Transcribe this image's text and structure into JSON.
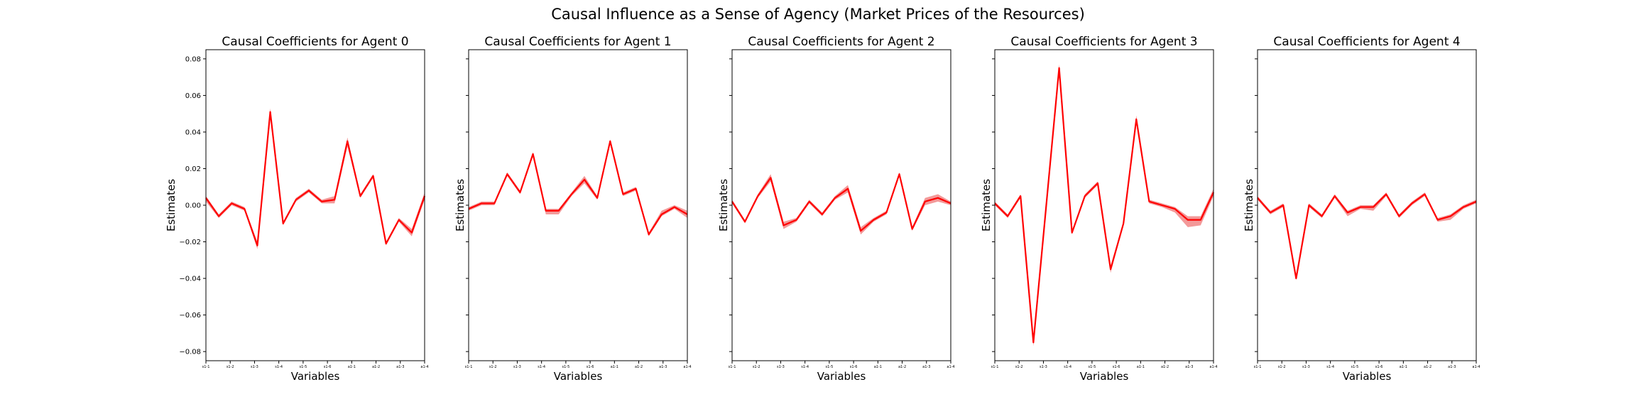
{
  "figure": {
    "suptitle": "Causal Influence as a Sense of Agency (Market Prices of the Resources)"
  },
  "colors": {
    "line": "#ff0000",
    "band": "#f08080",
    "axes": "#000000"
  },
  "chart_data": [
    {
      "type": "line",
      "title": "Causal Coefficients for Agent 0",
      "xlabel": "Variables",
      "ylabel": "Estimates",
      "ylim": [
        -0.085,
        0.085
      ],
      "yticks": [
        -0.08,
        -0.06,
        -0.04,
        -0.02,
        0.0,
        0.02,
        0.04,
        0.06,
        0.08
      ],
      "ytick_labels": [
        "−0.08",
        "−0.06",
        "−0.04",
        "−0.02",
        "0.00",
        "0.02",
        "0.04",
        "0.06",
        "0.08"
      ],
      "xtick_labels": [
        "s1-1",
        "s1-2",
        "s1-3",
        "s1-4",
        "s1-5",
        "s1-6",
        "a1-1",
        "a1-2",
        "a1-3",
        "a1-4"
      ],
      "series": [
        {
          "values": [
            0.004,
            -0.006,
            0.001,
            -0.002,
            -0.022,
            0.051,
            -0.01,
            0.003,
            0.008,
            0.002,
            0.003,
            0.035,
            0.005,
            0.016,
            -0.021,
            -0.008,
            -0.015,
            0.005
          ],
          "lower": [
            0.002,
            -0.007,
            0.0,
            -0.003,
            -0.024,
            0.048,
            -0.011,
            0.002,
            0.007,
            0.001,
            0.001,
            0.032,
            0.004,
            0.015,
            -0.022,
            -0.009,
            -0.017,
            0.003
          ],
          "upper": [
            0.005,
            -0.005,
            0.002,
            -0.001,
            -0.02,
            0.053,
            -0.009,
            0.004,
            0.009,
            0.003,
            0.005,
            0.037,
            0.006,
            0.017,
            -0.02,
            -0.007,
            -0.013,
            0.007
          ]
        }
      ]
    },
    {
      "type": "line",
      "title": "Causal Coefficients for Agent 1",
      "xlabel": "Variables",
      "ylabel": "Estimates",
      "ylim": [
        -0.085,
        0.085
      ],
      "xtick_labels": [
        "s1-1",
        "s1-2",
        "s1-3",
        "s1-4",
        "s1-5",
        "s1-6",
        "a1-1",
        "a1-2",
        "a1-3",
        "a1-4"
      ],
      "series": [
        {
          "values": [
            -0.002,
            0.001,
            0.001,
            0.017,
            0.007,
            0.028,
            -0.003,
            -0.003,
            0.006,
            0.014,
            0.004,
            0.035,
            0.006,
            0.009,
            -0.016,
            -0.005,
            -0.001,
            -0.005
          ],
          "lower": [
            -0.003,
            0.0,
            0.0,
            0.016,
            0.006,
            0.027,
            -0.005,
            -0.005,
            0.005,
            0.012,
            0.003,
            0.034,
            0.005,
            0.008,
            -0.017,
            -0.006,
            -0.002,
            -0.007
          ],
          "upper": [
            -0.001,
            0.002,
            0.002,
            0.018,
            0.008,
            0.029,
            -0.002,
            -0.002,
            0.007,
            0.016,
            0.005,
            0.036,
            0.007,
            0.01,
            -0.015,
            -0.003,
            0.0,
            -0.003
          ]
        }
      ]
    },
    {
      "type": "line",
      "title": "Causal Coefficients for Agent 2",
      "xlabel": "Variables",
      "ylabel": "Estimates",
      "ylim": [
        -0.085,
        0.085
      ],
      "xtick_labels": [
        "s1-1",
        "s1-2",
        "s1-3",
        "s1-4",
        "s1-5",
        "s1-6",
        "a1-1",
        "a1-2",
        "a1-3",
        "a1-4"
      ],
      "series": [
        {
          "values": [
            0.002,
            -0.009,
            0.005,
            0.015,
            -0.011,
            -0.008,
            0.002,
            -0.005,
            0.004,
            0.009,
            -0.014,
            -0.008,
            -0.004,
            0.017,
            -0.013,
            0.002,
            0.004,
            0.001
          ],
          "lower": [
            0.001,
            -0.01,
            0.004,
            0.013,
            -0.013,
            -0.009,
            0.001,
            -0.006,
            0.003,
            0.007,
            -0.016,
            -0.009,
            -0.005,
            0.016,
            -0.014,
            0.0,
            0.002,
            0.0
          ],
          "upper": [
            0.003,
            -0.008,
            0.006,
            0.017,
            -0.009,
            -0.007,
            0.003,
            -0.004,
            0.005,
            0.011,
            -0.012,
            -0.007,
            -0.003,
            0.018,
            -0.012,
            0.004,
            0.006,
            0.002
          ]
        }
      ]
    },
    {
      "type": "line",
      "title": "Causal Coefficients for Agent 3",
      "xlabel": "Variables",
      "ylabel": "Estimates",
      "ylim": [
        -0.085,
        0.085
      ],
      "xtick_labels": [
        "s1-1",
        "s1-2",
        "s1-3",
        "s1-4",
        "s1-5",
        "s1-6",
        "a1-1",
        "a1-2",
        "a1-3",
        "a1-4"
      ],
      "series": [
        {
          "values": [
            0.001,
            -0.006,
            0.005,
            -0.075,
            0.0,
            0.075,
            -0.015,
            0.005,
            0.012,
            -0.035,
            -0.01,
            0.047,
            0.002,
            0.0,
            -0.002,
            -0.008,
            -0.008,
            0.007
          ],
          "lower": [
            0.0,
            -0.007,
            0.004,
            -0.077,
            -0.001,
            0.073,
            -0.016,
            0.004,
            0.011,
            -0.037,
            -0.011,
            0.045,
            0.001,
            -0.001,
            -0.004,
            -0.012,
            -0.011,
            0.005
          ],
          "upper": [
            0.002,
            -0.005,
            0.006,
            -0.073,
            0.001,
            0.077,
            -0.014,
            0.006,
            0.013,
            -0.033,
            -0.009,
            0.049,
            0.003,
            0.001,
            -0.001,
            -0.006,
            -0.006,
            0.009
          ]
        }
      ]
    },
    {
      "type": "line",
      "title": "Causal Coefficients for Agent 4",
      "xlabel": "Variables",
      "ylabel": "Estimates",
      "ylim": [
        -0.085,
        0.085
      ],
      "xtick_labels": [
        "s1-1",
        "s1-2",
        "s1-3",
        "s1-4",
        "s1-5",
        "s1-6",
        "a1-1",
        "a1-2",
        "a1-3",
        "a1-4"
      ],
      "series": [
        {
          "values": [
            0.004,
            -0.004,
            0.0,
            -0.04,
            0.0,
            -0.006,
            0.005,
            -0.004,
            -0.001,
            -0.001,
            0.006,
            -0.006,
            0.001,
            0.006,
            -0.008,
            -0.006,
            -0.001,
            0.002
          ],
          "lower": [
            0.003,
            -0.005,
            -0.001,
            -0.041,
            -0.001,
            -0.007,
            0.004,
            -0.006,
            -0.002,
            -0.003,
            0.005,
            -0.007,
            0.0,
            0.005,
            -0.009,
            -0.008,
            -0.002,
            0.001
          ],
          "upper": [
            0.005,
            -0.003,
            0.001,
            -0.039,
            0.001,
            -0.005,
            0.006,
            -0.003,
            0.0,
            0.0,
            0.007,
            -0.005,
            0.002,
            0.007,
            -0.007,
            -0.005,
            0.0,
            0.003
          ]
        }
      ]
    }
  ]
}
